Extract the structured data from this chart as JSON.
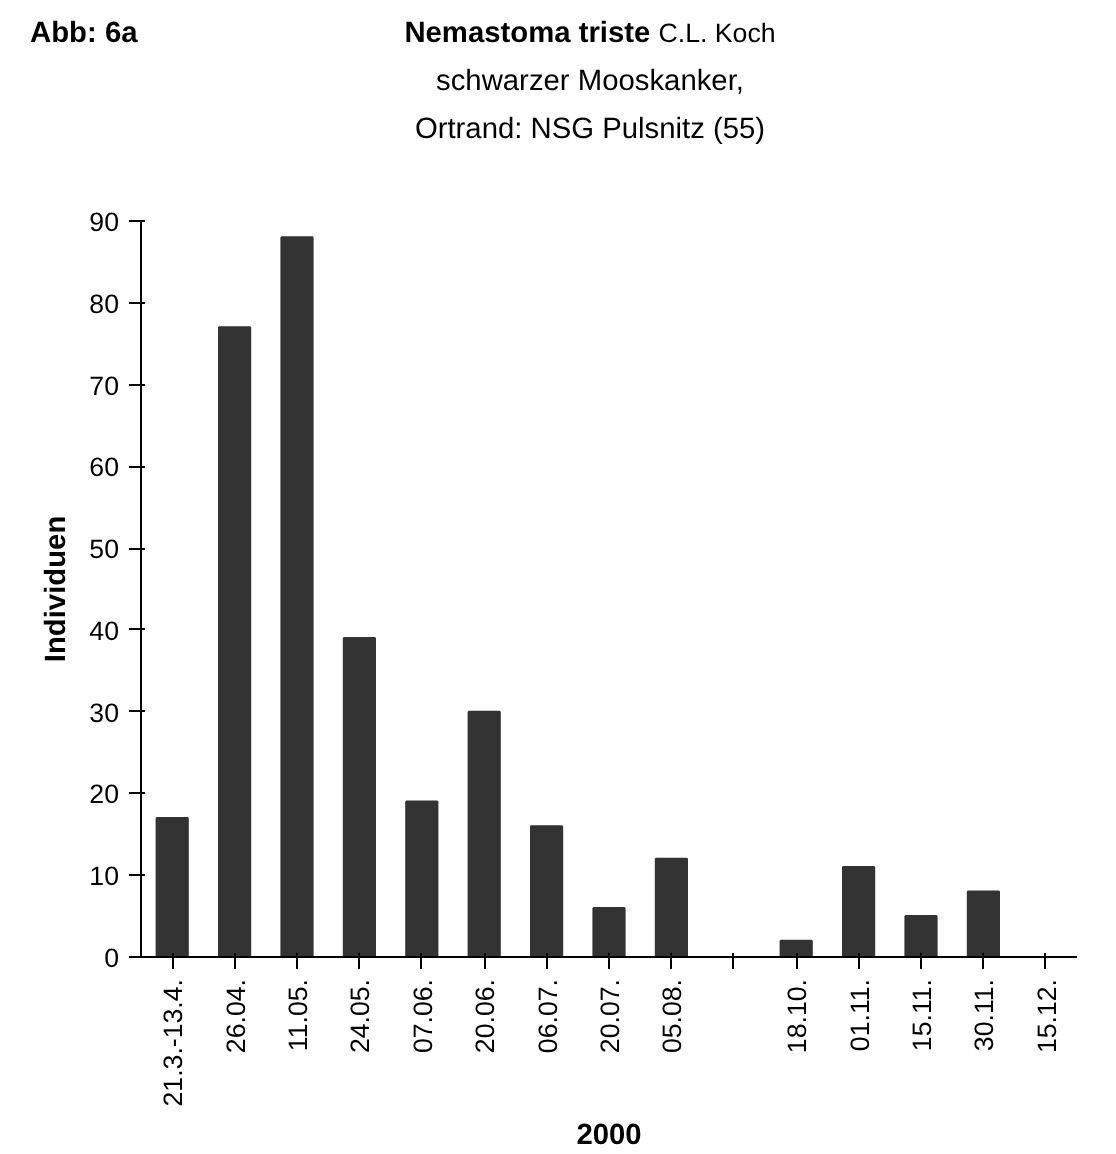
{
  "chart_data": {
    "type": "bar",
    "title": "Nemastoma triste",
    "subtitle": "C.L. Koch\nschwarzer Mooskanker,\nOrtrand: NSG Pulsnitz (55)",
    "annotations": [
      "Abb: 6a"
    ],
    "xlabel": "2000",
    "ylabel": "Individuen",
    "categories": [
      "21.3.-13.4.",
      "26.04.",
      "11.05.",
      "24.05.",
      "07.06.",
      "20.06.",
      "06.07.",
      "20.07.",
      "05.08.",
      null,
      "18.10.",
      "01.11.",
      "15.11.",
      "30.11.",
      "15.12."
    ],
    "values": [
      17,
      77,
      88,
      39,
      19,
      30,
      16,
      6,
      12,
      null,
      2,
      11,
      5,
      8,
      0
    ],
    "color": "#333333",
    "ylim": [
      0,
      90
    ],
    "yticks": [
      0,
      10,
      20,
      30,
      40,
      50,
      60,
      70,
      80,
      90
    ],
    "grid": false
  }
}
